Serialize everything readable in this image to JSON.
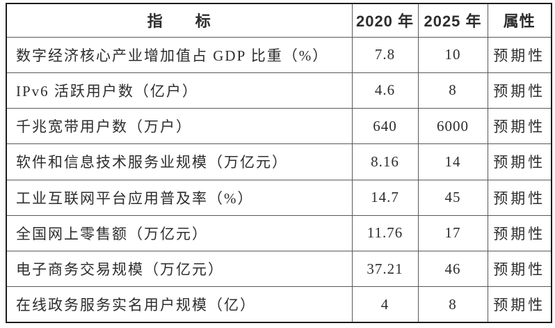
{
  "table": {
    "headers": {
      "indicator": "指　　标",
      "y2020": "2020 年",
      "y2025": "2025 年",
      "attr": "属性"
    },
    "rows": [
      {
        "indicator": "数字经济核心产业增加值占 GDP 比重（%）",
        "v2020": "7.8",
        "v2025": "10",
        "attr": "预期性"
      },
      {
        "indicator": "IPv6 活跃用户数（亿户）",
        "v2020": "4.6",
        "v2025": "8",
        "attr": "预期性"
      },
      {
        "indicator": "千兆宽带用户数（万户）",
        "v2020": "640",
        "v2025": "6000",
        "attr": "预期性"
      },
      {
        "indicator": "软件和信息技术服务业规模（万亿元）",
        "v2020": "8.16",
        "v2025": "14",
        "attr": "预期性"
      },
      {
        "indicator": "工业互联网平台应用普及率（%）",
        "v2020": "14.7",
        "v2025": "45",
        "attr": "预期性"
      },
      {
        "indicator": "全国网上零售额（万亿元）",
        "v2020": "11.76",
        "v2025": "17",
        "attr": "预期性"
      },
      {
        "indicator": "电子商务交易规模（万亿元）",
        "v2020": "37.21",
        "v2025": "46",
        "attr": "预期性"
      },
      {
        "indicator": "在线政务服务实名用户规模（亿）",
        "v2020": "4",
        "v2025": "8",
        "attr": "预期性"
      }
    ],
    "colors": {
      "outer_border": "#1c1c1c",
      "inner_border": "#585858",
      "text": "#2d2d2d",
      "background": "#ffffff"
    }
  }
}
